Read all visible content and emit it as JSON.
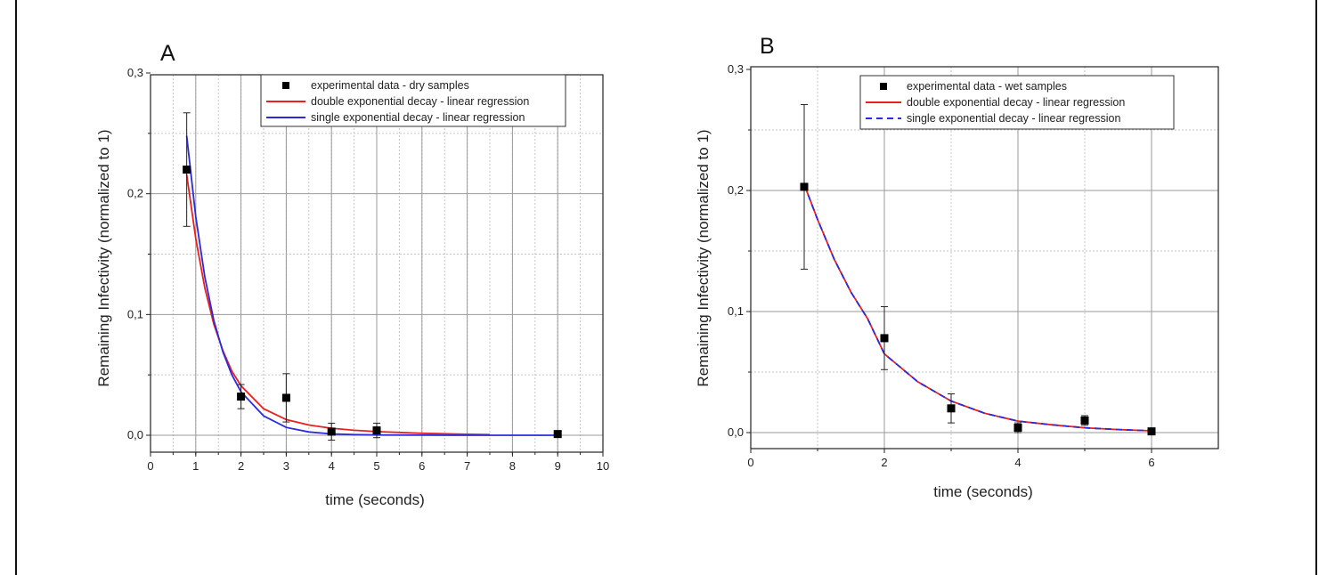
{
  "chart_data": [
    {
      "type": "scatter",
      "panel_label": "A",
      "xlabel": "time (seconds)",
      "ylabel": "Remaining Infectivity (normalized to 1)",
      "xlim": [
        0,
        10
      ],
      "ylim": [
        -0.01,
        0.3
      ],
      "x_ticks": [
        "0",
        "1",
        "2",
        "3",
        "4",
        "5",
        "6",
        "7",
        "8",
        "9",
        "10"
      ],
      "y_ticks": [
        "0,0",
        "0,1",
        "0,2",
        "0,3"
      ],
      "grid": true,
      "legend_position": "top-right",
      "series": [
        {
          "name": "experimental data - dry samples",
          "kind": "points",
          "color": "#000000",
          "x": [
            0.8,
            2,
            3,
            4,
            5,
            9
          ],
          "y": [
            0.22,
            0.032,
            0.031,
            0.003,
            0.004,
            0.001
          ],
          "y_error": [
            0.047,
            0.01,
            0.02,
            0.007,
            0.006,
            0.002
          ]
        },
        {
          "name": "double exponential decay - linear regression",
          "kind": "curve",
          "color": "#e8201f",
          "x": [
            0.8,
            1.0,
            1.2,
            1.4,
            1.6,
            1.8,
            2.0,
            2.5,
            3.0,
            3.5,
            4.0,
            4.5,
            5.0,
            6.0,
            7.0,
            7.5
          ],
          "y": [
            0.216,
            0.163,
            0.122,
            0.092,
            0.07,
            0.053,
            0.041,
            0.022,
            0.013,
            0.0085,
            0.0058,
            0.0041,
            0.003,
            0.0016,
            0.0008,
            0.0005
          ]
        },
        {
          "name": "single exponential decay - linear regression",
          "kind": "curve",
          "color": "#2b2bdc",
          "x": [
            0.8,
            1.0,
            1.2,
            1.4,
            1.6,
            1.8,
            2.0,
            2.5,
            3.0,
            3.5,
            4.0,
            4.5,
            5.0,
            6.0,
            7.0,
            8.0,
            9.0
          ],
          "y": [
            0.248,
            0.181,
            0.131,
            0.095,
            0.069,
            0.05,
            0.036,
            0.016,
            0.0065,
            0.0027,
            0.0011,
            0.0005,
            0.0002,
            0.0001,
            0.0,
            0.0,
            0.0
          ]
        }
      ]
    },
    {
      "type": "scatter",
      "panel_label": "B",
      "xlabel": "time (seconds)",
      "ylabel": "Remaining Infectivity (normalized to 1)",
      "xlim": [
        0,
        7
      ],
      "ylim": [
        -0.01,
        0.3
      ],
      "x_ticks": [
        "0",
        "2",
        "4",
        "6"
      ],
      "y_ticks": [
        "0,0",
        "0,1",
        "0,2",
        "0,3"
      ],
      "grid": true,
      "legend_position": "top-right",
      "series": [
        {
          "name": "experimental data - wet samples",
          "kind": "points",
          "color": "#000000",
          "x": [
            0.8,
            2,
            3,
            4,
            5,
            6
          ],
          "y": [
            0.203,
            0.078,
            0.02,
            0.004,
            0.01,
            0.001
          ],
          "y_error": [
            0.068,
            0.026,
            0.012,
            0.004,
            0.004,
            0.001
          ]
        },
        {
          "name": "double exponential decay - linear regression",
          "kind": "curve",
          "color": "#e8201f",
          "x": [
            0.8,
            1.0,
            1.25,
            1.5,
            1.75,
            2.0,
            2.5,
            3.0,
            3.5,
            4.0,
            4.5,
            5.0,
            5.5,
            6.0
          ],
          "y": [
            0.205,
            0.176,
            0.143,
            0.116,
            0.094,
            0.065,
            0.042,
            0.026,
            0.016,
            0.0095,
            0.0065,
            0.004,
            0.0025,
            0.0015
          ]
        },
        {
          "name": "single exponential decay - linear regression",
          "kind": "curve",
          "dashed": true,
          "color": "#2b2bdc",
          "x": [
            0.8,
            1.0,
            1.25,
            1.5,
            1.75,
            2.0,
            2.5,
            3.0,
            3.5,
            4.0,
            4.5,
            5.0,
            5.5,
            6.0
          ],
          "y": [
            0.205,
            0.176,
            0.143,
            0.116,
            0.094,
            0.065,
            0.042,
            0.026,
            0.016,
            0.0095,
            0.0065,
            0.004,
            0.0025,
            0.0015
          ]
        }
      ]
    }
  ]
}
